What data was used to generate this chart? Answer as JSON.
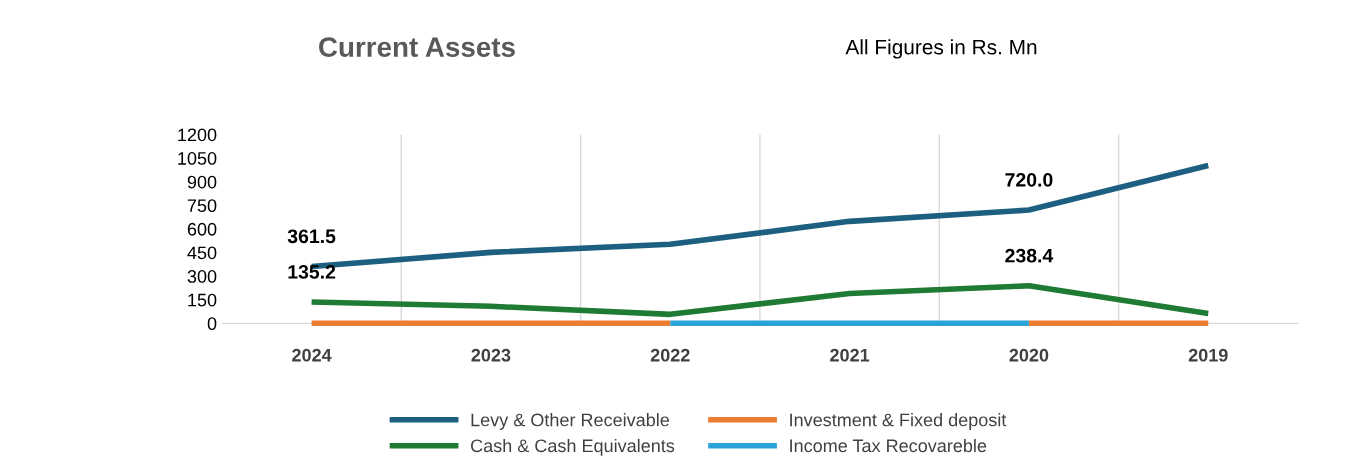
{
  "chart_data": {
    "type": "line",
    "title": "Current Assets",
    "subtitle": "All Figures in Rs. Mn",
    "categories": [
      "2024",
      "2023",
      "2022",
      "2021",
      "2020",
      "2019"
    ],
    "series": [
      {
        "name": "Levy & Other Receivable",
        "color": "#1d5f80",
        "values": [
          361.5,
          451,
          502,
          648,
          720.0,
          1003
        ],
        "value_labels": [
          "361.5",
          null,
          null,
          null,
          "720.0",
          null
        ]
      },
      {
        "name": "Cash & Cash Equivalents",
        "color": "#1f7a33",
        "values": [
          135.2,
          108,
          57,
          190,
          238.4,
          63
        ],
        "value_labels": [
          "135.2",
          null,
          null,
          null,
          "238.4",
          null
        ]
      },
      {
        "name": "Investment & Fixed deposit",
        "color": "#ed7d31",
        "values": [
          0,
          0,
          0,
          null,
          0,
          0
        ]
      },
      {
        "name": "Income Tax Recovareble",
        "color": "#2aa3d6",
        "values": [
          null,
          null,
          0,
          0,
          0,
          null
        ]
      }
    ],
    "ylim": [
      0,
      1200
    ],
    "yticks": [
      0,
      150,
      300,
      450,
      600,
      750,
      900,
      1050,
      1200
    ],
    "grid": "x",
    "legend": "bottom",
    "marker": "none",
    "line_style": "solid"
  }
}
